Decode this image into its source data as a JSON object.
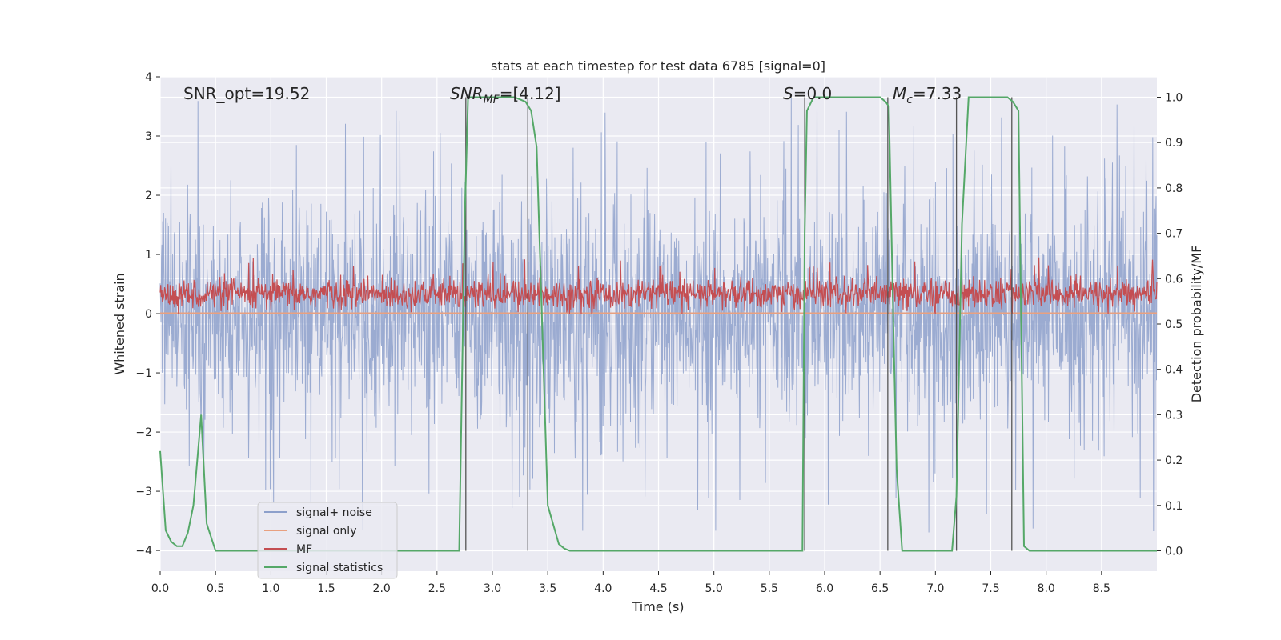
{
  "chart_data": {
    "type": "line",
    "title": "stats at each timestep for test data 6785 [signal=0]",
    "xlabel": "Time (s)",
    "ylabel_left": "Whitened strain",
    "ylabel_right": "Detection probability/MF",
    "xlim": [
      0,
      9
    ],
    "ylim_left": [
      -4.35,
      4
    ],
    "ylim_right": [
      -0.045,
      1.045
    ],
    "xticks": [
      "0.0",
      "0.5",
      "1.0",
      "1.5",
      "2.0",
      "2.5",
      "3.0",
      "3.5",
      "4.0",
      "4.5",
      "5.0",
      "5.5",
      "6.0",
      "6.5",
      "7.0",
      "7.5",
      "8.0",
      "8.5"
    ],
    "yticks_left": [
      "4",
      "3",
      "2",
      "1",
      "0",
      "−1",
      "−2",
      "−3",
      "−4"
    ],
    "yticks_right": [
      "1.0",
      "0.9",
      "0.8",
      "0.7",
      "0.6",
      "0.5",
      "0.4",
      "0.3",
      "0.2",
      "0.1",
      "0.0"
    ],
    "grid": true,
    "legend_location": "lower-left",
    "annotations": {
      "snr_opt": "SNR_opt=19.52",
      "snr_mf_sym": "SNR",
      "snr_mf_sub": "MF",
      "snr_mf_val": "=[4.12]",
      "s_sym": "S",
      "s_val": "=0.0",
      "mc_sym": "M",
      "mc_sub": "c",
      "mc_val": "=7.33"
    },
    "series": [
      {
        "name": "signal+ noise",
        "color": "#8da0cb",
        "description": "noisy whitened strain, amplitude roughly -4 to 3.7"
      },
      {
        "name": "signal only",
        "color": "#e8a080",
        "description": "flat near 0"
      },
      {
        "name": "MF",
        "color": "#c44e52",
        "values_range": [
          0.0,
          0.95
        ]
      },
      {
        "name": "signal statistics",
        "color": "#55a868",
        "axis": "right",
        "x": [
          0.0,
          0.05,
          0.1,
          0.15,
          0.2,
          0.25,
          0.3,
          0.37,
          0.42,
          0.5,
          1.0,
          2.0,
          2.6,
          2.7,
          2.75,
          2.78,
          2.82,
          2.9,
          3.2,
          3.3,
          3.35,
          3.4,
          3.5,
          3.6,
          3.65,
          3.7,
          4.0,
          5.0,
          5.5,
          5.8,
          5.82,
          5.84,
          5.9,
          6.0,
          6.45,
          6.5,
          6.55,
          6.58,
          6.62,
          6.65,
          6.7,
          6.72,
          7.0,
          7.15,
          7.19,
          7.24,
          7.3,
          7.6,
          7.65,
          7.7,
          7.75,
          7.8,
          7.85,
          7.9,
          8.0,
          9.0
        ],
        "values": [
          0.22,
          0.045,
          0.02,
          0.01,
          0.01,
          0.04,
          0.1,
          0.3,
          0.06,
          0.0,
          0.0,
          0.0,
          0.0,
          0.0,
          0.73,
          1.0,
          1.0,
          1.0,
          1.0,
          0.99,
          0.97,
          0.89,
          0.1,
          0.015,
          0.005,
          0.0,
          0.0,
          0.0,
          0.0,
          0.0,
          0.7,
          0.97,
          1.0,
          1.0,
          1.0,
          1.0,
          0.99,
          0.98,
          0.5,
          0.18,
          0.0,
          0.0,
          0.0,
          0.0,
          0.12,
          0.72,
          1.0,
          1.0,
          1.0,
          0.99,
          0.97,
          0.01,
          0.0,
          0.0,
          0.0,
          0.0
        ]
      }
    ],
    "vlines_x": [
      2.76,
      3.32,
      5.82,
      6.57,
      7.19,
      7.69
    ]
  }
}
